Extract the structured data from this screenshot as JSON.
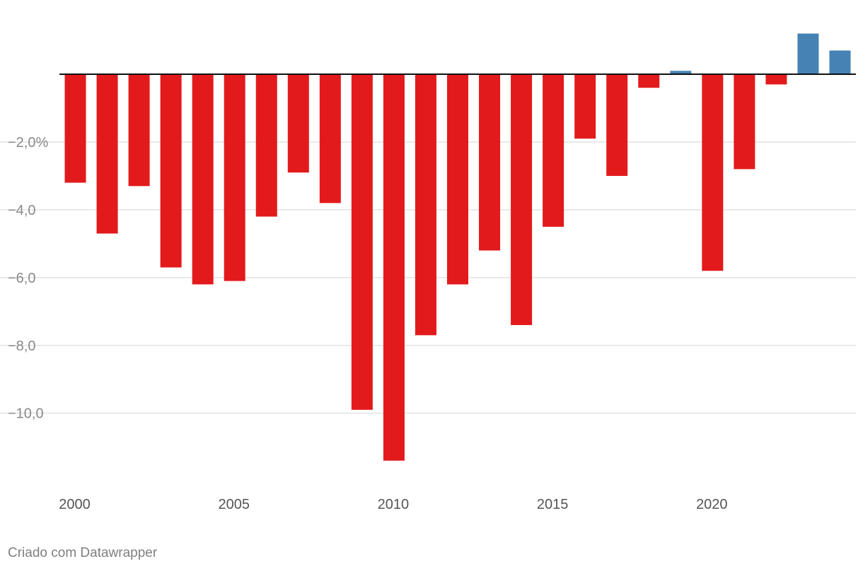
{
  "chart_data": {
    "type": "bar",
    "categories": [
      "2000",
      "2001",
      "2002",
      "2003",
      "2004",
      "2005",
      "2006",
      "2007",
      "2008",
      "2009",
      "2010",
      "2011",
      "2012",
      "2013",
      "2014",
      "2015",
      "2016",
      "2017",
      "2018",
      "2019",
      "2020",
      "2021",
      "2022",
      "2023",
      "2024"
    ],
    "values": [
      -3.2,
      -4.7,
      -3.3,
      -5.7,
      -6.2,
      -6.1,
      -4.2,
      -2.9,
      -3.8,
      -9.9,
      -11.4,
      -7.7,
      -6.2,
      -5.2,
      -7.4,
      -4.5,
      -1.9,
      -3.0,
      -0.4,
      0.1,
      -5.8,
      -2.8,
      -0.3,
      1.2,
      0.7
    ],
    "ylim": [
      -12.3,
      1.2
    ],
    "y_ticks": [
      -2,
      -4,
      -6,
      -8,
      -10
    ],
    "y_tick_labels": [
      "−2,0%",
      "−4,0",
      "−6,0",
      "−8,0",
      "−10,0"
    ],
    "x_tick_labels": [
      "2000",
      "2005",
      "2010",
      "2015",
      "2020"
    ],
    "grid": true,
    "colors": {
      "negative": "#e31a1c",
      "positive": "#4682b4",
      "grid": "#e2e2e2",
      "zero_line": "#111111"
    }
  },
  "footer": {
    "credit": "Criado com Datawrapper"
  }
}
